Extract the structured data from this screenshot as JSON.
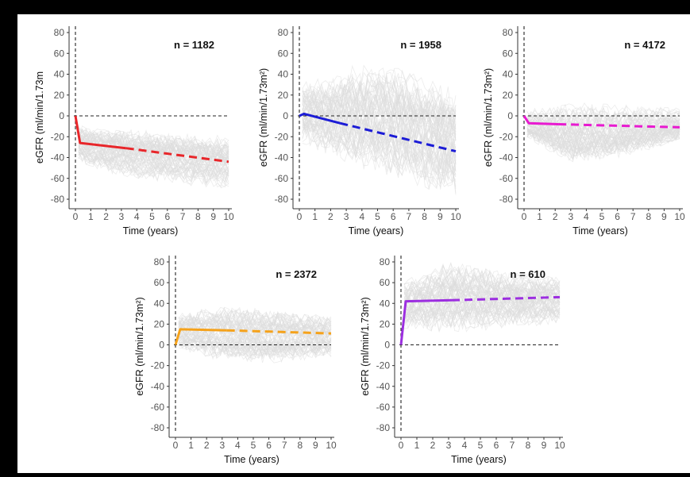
{
  "figure": {
    "y_ticks": [
      80,
      60,
      40,
      20,
      0,
      -20,
      -40,
      -60,
      -80
    ],
    "x_ticks": [
      0,
      1,
      2,
      3,
      4,
      5,
      6,
      7,
      8,
      9,
      10
    ]
  },
  "chart_data": [
    {
      "type": "line",
      "n_label": "n = 1182",
      "ylabel": "eGFR (ml/min/1.73m",
      "xlabel": "Time (years)",
      "xlim": [
        0,
        10
      ],
      "ylim": [
        -85,
        85
      ],
      "color": "#e8262a",
      "series": [
        {
          "style": "solid",
          "x": [
            0,
            0.3,
            3.3
          ],
          "y": [
            0,
            -26,
            -31
          ]
        },
        {
          "style": "dashed",
          "x": [
            3.3,
            10
          ],
          "y": [
            -31,
            -44
          ]
        }
      ],
      "grey_band": {
        "upper": [
          [
            0,
            -8
          ],
          [
            1,
            -10
          ],
          [
            3,
            -12
          ],
          [
            6,
            -16
          ],
          [
            10,
            -20
          ]
        ],
        "lower": [
          [
            0,
            -45
          ],
          [
            2,
            -55
          ],
          [
            5,
            -62
          ],
          [
            10,
            -70
          ]
        ]
      }
    },
    {
      "type": "line",
      "n_label": "n = 1958",
      "ylabel": "eGFR (ml/min/1.73m²)",
      "xlabel": "Time (years)",
      "xlim": [
        0,
        10
      ],
      "ylim": [
        -85,
        85
      ],
      "color": "#1c1cd6",
      "series": [
        {
          "style": "solid",
          "x": [
            0,
            0.3,
            2.6
          ],
          "y": [
            0,
            2,
            -7
          ]
        },
        {
          "style": "dashed",
          "x": [
            2.6,
            10
          ],
          "y": [
            -7,
            -34
          ]
        }
      ],
      "grey_band": {
        "upper": [
          [
            0,
            30
          ],
          [
            3,
            45
          ],
          [
            6,
            50
          ],
          [
            10,
            25
          ]
        ],
        "lower": [
          [
            0,
            -25
          ],
          [
            3,
            -45
          ],
          [
            6,
            -60
          ],
          [
            10,
            -78
          ]
        ]
      }
    },
    {
      "type": "line",
      "n_label": "n = 4172",
      "ylabel": "eGFR (ml/min/1.73m²)",
      "xlabel": "Time (years)",
      "xlim": [
        0,
        10
      ],
      "ylim": [
        -85,
        85
      ],
      "color": "#e81ad0",
      "series": [
        {
          "style": "solid",
          "x": [
            0,
            0.3,
            2.2
          ],
          "y": [
            0,
            -7,
            -8
          ]
        },
        {
          "style": "dashed",
          "x": [
            2.2,
            10
          ],
          "y": [
            -8,
            -11
          ]
        }
      ],
      "grey_band": {
        "upper": [
          [
            0,
            5
          ],
          [
            3,
            12
          ],
          [
            6,
            10
          ],
          [
            10,
            8
          ]
        ],
        "lower": [
          [
            0,
            -20
          ],
          [
            3,
            -45
          ],
          [
            6,
            -40
          ],
          [
            10,
            -25
          ]
        ]
      }
    },
    {
      "type": "line",
      "n_label": "n = 2372",
      "ylabel": "eGFR (ml/min/1.73m²)",
      "xlabel": "Time (years)",
      "xlim": [
        0,
        10
      ],
      "ylim": [
        -85,
        85
      ],
      "color": "#f5a21b",
      "series": [
        {
          "style": "solid",
          "x": [
            0,
            0.3,
            3.3
          ],
          "y": [
            0,
            15,
            14
          ]
        },
        {
          "style": "dashed",
          "x": [
            3.3,
            10
          ],
          "y": [
            14,
            11
          ]
        }
      ],
      "grey_band": {
        "upper": [
          [
            0,
            30
          ],
          [
            3,
            38
          ],
          [
            6,
            35
          ],
          [
            10,
            28
          ]
        ],
        "lower": [
          [
            0,
            -5
          ],
          [
            3,
            -15
          ],
          [
            6,
            -18
          ],
          [
            10,
            -12
          ]
        ]
      }
    },
    {
      "type": "line",
      "n_label": "n = 610",
      "ylabel": "eGFR (ml/min/1.73m²)",
      "xlabel": "Time (years)",
      "xlim": [
        0,
        10
      ],
      "ylim": [
        -85,
        85
      ],
      "color": "#9c2ee0",
      "series": [
        {
          "style": "solid",
          "x": [
            0,
            0.3,
            3.2
          ],
          "y": [
            0,
            42,
            43
          ]
        },
        {
          "style": "dashed",
          "x": [
            3.2,
            10
          ],
          "y": [
            43,
            46
          ]
        }
      ],
      "grey_band": {
        "upper": [
          [
            0,
            60
          ],
          [
            3,
            80
          ],
          [
            6,
            72
          ],
          [
            10,
            65
          ]
        ],
        "lower": [
          [
            0,
            15
          ],
          [
            3,
            12
          ],
          [
            6,
            14
          ],
          [
            10,
            22
          ]
        ]
      }
    }
  ]
}
